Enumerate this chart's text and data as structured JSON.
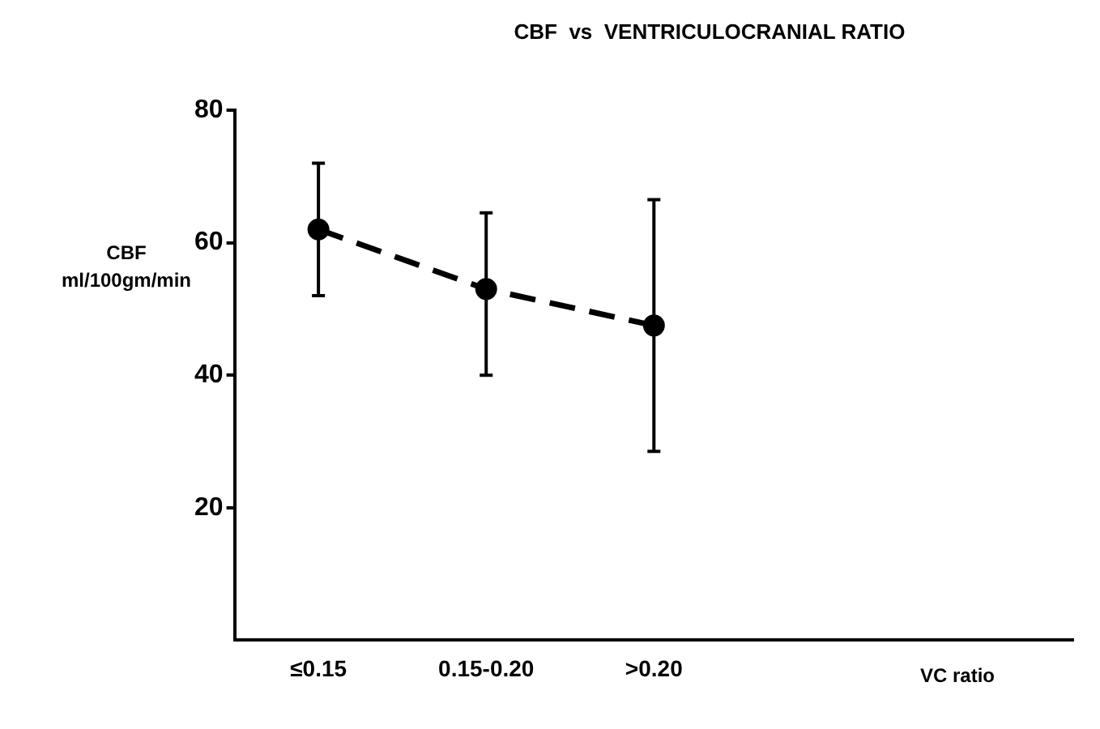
{
  "chart_data": {
    "type": "line",
    "title": "CBF  vs  VENTRICULOCRANIAL RATIO",
    "xlabel": "VC ratio",
    "ylabel": "CBF\nml/100gm/min",
    "categories": [
      "≤0.15",
      "0.15-0.20",
      ">0.20",
      null,
      null
    ],
    "series": [
      {
        "color": "#000000",
        "values": [
          62,
          53,
          47.5,
          null,
          null
        ],
        "errors": [
          [
            52,
            72
          ],
          [
            40,
            64.5
          ],
          [
            28.5,
            66.5
          ],
          null,
          null
        ]
      }
    ],
    "ylim": [
      0,
      80
    ],
    "yticks": [
      20,
      40,
      60,
      80
    ],
    "grid": false,
    "legend": false,
    "marker": "circle",
    "line_style": "dashed"
  }
}
